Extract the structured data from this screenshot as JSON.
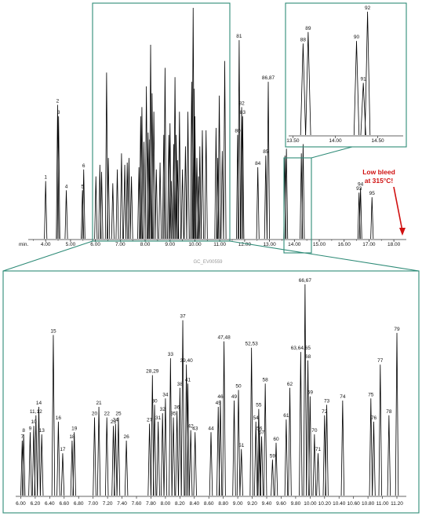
{
  "chart_data": [
    {
      "type": "line",
      "name": "overview",
      "xlabel": "min.",
      "xlim": [
        3.3,
        18.5
      ],
      "ticks": [
        4.0,
        5.0,
        6.0,
        7.0,
        8.0,
        9.0,
        10.0,
        11.0,
        12.0,
        13.0,
        14.0,
        15.0,
        16.0,
        17.0,
        18.0
      ],
      "peaks": [
        {
          "label": "1",
          "x": 4.0,
          "h": 0.25
        },
        {
          "label": "2",
          "x": 4.48,
          "h": 0.58
        },
        {
          "label": "3",
          "x": 4.52,
          "h": 0.53
        },
        {
          "label": "4",
          "x": 4.83,
          "h": 0.21
        },
        {
          "label": "5",
          "x": 5.48,
          "h": 0.21
        },
        {
          "label": "6",
          "x": 5.53,
          "h": 0.3
        },
        {
          "label": "",
          "x": 6.02,
          "h": 0.27
        },
        {
          "label": "",
          "x": 6.18,
          "h": 0.32
        },
        {
          "label": "",
          "x": 6.25,
          "h": 0.29
        },
        {
          "label": "",
          "x": 6.45,
          "h": 0.72
        },
        {
          "label": "",
          "x": 6.52,
          "h": 0.35
        },
        {
          "label": "",
          "x": 6.7,
          "h": 0.24
        },
        {
          "label": "",
          "x": 6.88,
          "h": 0.3
        },
        {
          "label": "",
          "x": 7.05,
          "h": 0.37
        },
        {
          "label": "",
          "x": 7.18,
          "h": 0.32
        },
        {
          "label": "",
          "x": 7.28,
          "h": 0.33
        },
        {
          "label": "",
          "x": 7.35,
          "h": 0.35
        },
        {
          "label": "",
          "x": 7.45,
          "h": 0.27
        },
        {
          "label": "",
          "x": 7.75,
          "h": 0.31
        },
        {
          "label": "",
          "x": 7.82,
          "h": 0.53
        },
        {
          "label": "",
          "x": 7.87,
          "h": 0.57
        },
        {
          "label": "",
          "x": 7.95,
          "h": 0.42
        },
        {
          "label": "",
          "x": 8.05,
          "h": 0.66
        },
        {
          "label": "",
          "x": 8.12,
          "h": 0.46
        },
        {
          "label": "",
          "x": 8.18,
          "h": 0.43
        },
        {
          "label": "",
          "x": 8.22,
          "h": 0.84
        },
        {
          "label": "",
          "x": 8.28,
          "h": 0.63
        },
        {
          "label": "",
          "x": 8.35,
          "h": 0.55
        },
        {
          "label": "",
          "x": 8.45,
          "h": 0.3
        },
        {
          "label": "",
          "x": 8.6,
          "h": 0.33
        },
        {
          "label": "",
          "x": 8.75,
          "h": 0.45
        },
        {
          "label": "",
          "x": 8.8,
          "h": 0.74
        },
        {
          "label": "",
          "x": 8.95,
          "h": 0.45
        },
        {
          "label": "",
          "x": 9.0,
          "h": 0.5
        },
        {
          "label": "",
          "x": 9.05,
          "h": 0.25
        },
        {
          "label": "",
          "x": 9.15,
          "h": 0.41
        },
        {
          "label": "",
          "x": 9.2,
          "h": 0.7
        },
        {
          "label": "",
          "x": 9.25,
          "h": 0.45
        },
        {
          "label": "",
          "x": 9.3,
          "h": 0.34
        },
        {
          "label": "",
          "x": 9.38,
          "h": 0.55
        },
        {
          "label": "",
          "x": 9.5,
          "h": 0.3
        },
        {
          "label": "",
          "x": 9.62,
          "h": 0.4
        },
        {
          "label": "",
          "x": 9.72,
          "h": 0.55
        },
        {
          "label": "",
          "x": 9.87,
          "h": 0.68
        },
        {
          "label": "",
          "x": 9.93,
          "h": 1.0
        },
        {
          "label": "",
          "x": 9.97,
          "h": 0.65
        },
        {
          "label": "",
          "x": 10.0,
          "h": 0.53
        },
        {
          "label": "",
          "x": 10.08,
          "h": 0.35
        },
        {
          "label": "",
          "x": 10.15,
          "h": 0.27
        },
        {
          "label": "",
          "x": 10.2,
          "h": 0.4
        },
        {
          "label": "",
          "x": 10.3,
          "h": 0.47
        },
        {
          "label": "",
          "x": 10.45,
          "h": 0.47
        },
        {
          "label": "",
          "x": 10.85,
          "h": 0.48
        },
        {
          "label": "",
          "x": 10.92,
          "h": 0.35
        },
        {
          "label": "",
          "x": 10.98,
          "h": 0.62
        },
        {
          "label": "",
          "x": 11.1,
          "h": 0.38
        },
        {
          "label": "",
          "x": 11.2,
          "h": 0.77
        },
        {
          "label": "80",
          "x": 11.72,
          "h": 0.45
        },
        {
          "label": "81",
          "x": 11.78,
          "h": 0.86
        },
        {
          "label": "82",
          "x": 11.88,
          "h": 0.57
        },
        {
          "label": "83",
          "x": 11.92,
          "h": 0.53
        },
        {
          "label": "84",
          "x": 12.53,
          "h": 0.31
        },
        {
          "label": "85",
          "x": 12.85,
          "h": 0.36
        },
        {
          "label": "86,87",
          "x": 12.95,
          "h": 0.68
        },
        {
          "label": "",
          "x": 13.62,
          "h": 0.36
        },
        {
          "label": "",
          "x": 13.68,
          "h": 0.39
        },
        {
          "label": "",
          "x": 14.28,
          "h": 0.37
        },
        {
          "label": "",
          "x": 14.35,
          "h": 0.41
        },
        {
          "label": "93",
          "x": 16.6,
          "h": 0.2
        },
        {
          "label": "94",
          "x": 16.66,
          "h": 0.22
        },
        {
          "label": "95",
          "x": 17.12,
          "h": 0.18
        }
      ],
      "annotation": "Low bleed at 315°C!",
      "watermark": "GC_EV00559"
    },
    {
      "type": "line",
      "name": "inset",
      "xlim": [
        13.45,
        14.8
      ],
      "ticks": [
        13.5,
        14.0,
        14.5
      ],
      "peaks": [
        {
          "label": "88",
          "x": 13.62,
          "h": 0.72
        },
        {
          "label": "89",
          "x": 13.68,
          "h": 0.81
        },
        {
          "label": "90",
          "x": 14.25,
          "h": 0.74
        },
        {
          "label": "91",
          "x": 14.33,
          "h": 0.41
        },
        {
          "label": "92",
          "x": 14.38,
          "h": 0.97
        }
      ]
    },
    {
      "type": "line",
      "name": "zoom",
      "xlim": [
        5.93,
        11.33
      ],
      "ticks": [
        6.0,
        6.2,
        6.4,
        6.6,
        6.8,
        7.0,
        7.2,
        7.4,
        7.6,
        7.8,
        8.0,
        8.2,
        8.4,
        8.6,
        8.8,
        9.0,
        9.2,
        9.4,
        9.6,
        9.8,
        10.0,
        10.2,
        10.4,
        10.6,
        10.8,
        11.0,
        11.2
      ],
      "peaks": [
        {
          "label": "7",
          "x": 6.02,
          "h": 0.26
        },
        {
          "label": "8",
          "x": 6.04,
          "h": 0.29
        },
        {
          "label": "9",
          "x": 6.13,
          "h": 0.3
        },
        {
          "label": "10",
          "x": 6.18,
          "h": 0.33
        },
        {
          "label": "11,12",
          "x": 6.21,
          "h": 0.38
        },
        {
          "label": "13",
          "x": 6.29,
          "h": 0.29
        },
        {
          "label": "14",
          "x": 6.25,
          "h": 0.42
        },
        {
          "label": "15",
          "x": 6.45,
          "h": 0.76
        },
        {
          "label": "16",
          "x": 6.52,
          "h": 0.35
        },
        {
          "label": "17",
          "x": 6.58,
          "h": 0.2
        },
        {
          "label": "18",
          "x": 6.71,
          "h": 0.26
        },
        {
          "label": "19",
          "x": 6.74,
          "h": 0.3
        },
        {
          "label": "20",
          "x": 7.02,
          "h": 0.37
        },
        {
          "label": "21",
          "x": 7.08,
          "h": 0.42
        },
        {
          "label": "22",
          "x": 7.19,
          "h": 0.37
        },
        {
          "label": "23",
          "x": 7.28,
          "h": 0.33
        },
        {
          "label": "24",
          "x": 7.31,
          "h": 0.34
        },
        {
          "label": "25",
          "x": 7.35,
          "h": 0.37
        },
        {
          "label": "26",
          "x": 7.46,
          "h": 0.26
        },
        {
          "label": "27",
          "x": 7.78,
          "h": 0.34
        },
        {
          "label": "28,29",
          "x": 7.82,
          "h": 0.57
        },
        {
          "label": "30",
          "x": 7.85,
          "h": 0.43
        },
        {
          "label": "31",
          "x": 7.9,
          "h": 0.35
        },
        {
          "label": "32",
          "x": 7.96,
          "h": 0.39
        },
        {
          "label": "33",
          "x": 8.07,
          "h": 0.65
        },
        {
          "label": "34",
          "x": 8.0,
          "h": 0.46
        },
        {
          "label": "35",
          "x": 8.11,
          "h": 0.37
        },
        {
          "label": "36",
          "x": 8.16,
          "h": 0.4
        },
        {
          "label": "37",
          "x": 8.24,
          "h": 0.83
        },
        {
          "label": "38",
          "x": 8.2,
          "h": 0.51
        },
        {
          "label": "39,40",
          "x": 8.29,
          "h": 0.62
        },
        {
          "label": "41",
          "x": 8.31,
          "h": 0.53
        },
        {
          "label": "42",
          "x": 8.35,
          "h": 0.31
        },
        {
          "label": "43",
          "x": 8.41,
          "h": 0.3
        },
        {
          "label": "44",
          "x": 8.63,
          "h": 0.3
        },
        {
          "label": "45",
          "x": 8.73,
          "h": 0.42
        },
        {
          "label": "46",
          "x": 8.76,
          "h": 0.45
        },
        {
          "label": "47,48",
          "x": 8.81,
          "h": 0.73
        },
        {
          "label": "49",
          "x": 8.95,
          "h": 0.45
        },
        {
          "label": "50",
          "x": 9.01,
          "h": 0.5
        },
        {
          "label": "51",
          "x": 9.05,
          "h": 0.22
        },
        {
          "label": "52,53",
          "x": 9.19,
          "h": 0.7
        },
        {
          "label": "54",
          "x": 9.25,
          "h": 0.35
        },
        {
          "label": "55",
          "x": 9.29,
          "h": 0.41
        },
        {
          "label": "56",
          "x": 9.3,
          "h": 0.3
        },
        {
          "label": "57",
          "x": 9.33,
          "h": 0.28
        },
        {
          "label": "58",
          "x": 9.38,
          "h": 0.53
        },
        {
          "label": "59",
          "x": 9.48,
          "h": 0.17
        },
        {
          "label": "60",
          "x": 9.53,
          "h": 0.25
        },
        {
          "label": "61",
          "x": 9.67,
          "h": 0.36
        },
        {
          "label": "62",
          "x": 9.72,
          "h": 0.51
        },
        {
          "label": "63,64,65",
          "x": 9.87,
          "h": 0.68
        },
        {
          "label": "66,67",
          "x": 9.93,
          "h": 1.0
        },
        {
          "label": "68",
          "x": 9.97,
          "h": 0.64
        },
        {
          "label": "69",
          "x": 10.0,
          "h": 0.47
        },
        {
          "label": "70",
          "x": 10.06,
          "h": 0.29
        },
        {
          "label": "71",
          "x": 10.11,
          "h": 0.2
        },
        {
          "label": "72",
          "x": 10.2,
          "h": 0.38
        },
        {
          "label": "73",
          "x": 10.23,
          "h": 0.43
        },
        {
          "label": "74",
          "x": 10.45,
          "h": 0.45
        },
        {
          "label": "75",
          "x": 10.84,
          "h": 0.46
        },
        {
          "label": "76",
          "x": 10.88,
          "h": 0.35
        },
        {
          "label": "77",
          "x": 10.97,
          "h": 0.62
        },
        {
          "label": "78",
          "x": 11.09,
          "h": 0.38
        },
        {
          "label": "79",
          "x": 11.2,
          "h": 0.77
        }
      ]
    }
  ]
}
